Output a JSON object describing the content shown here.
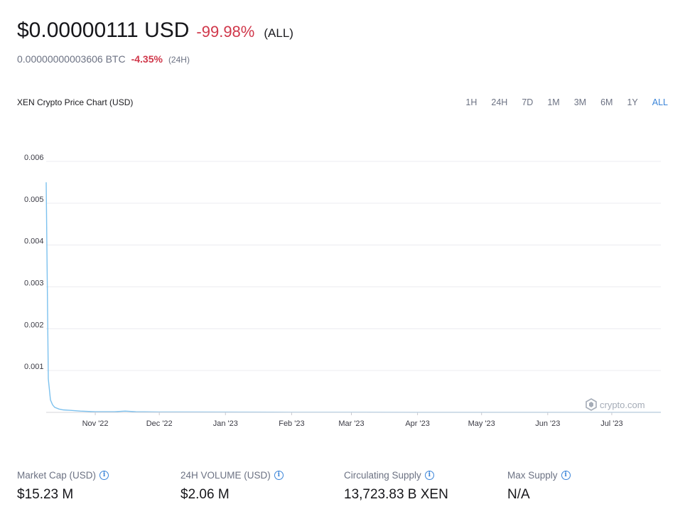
{
  "header": {
    "price": "$0.00000111 USD",
    "change": "-99.98%",
    "period": "(ALL)",
    "btc_price": "0.00000000003606 BTC",
    "btc_change": "-4.35%",
    "btc_period": "(24H)"
  },
  "chart_title": "XEN Crypto Price Chart (USD)",
  "range_tabs": [
    "1H",
    "24H",
    "7D",
    "1M",
    "3M",
    "6M",
    "1Y",
    "ALL"
  ],
  "active_range": "ALL",
  "watermark": "crypto.com",
  "colors": {
    "line": "#7cc1ee",
    "negative": "#d0374a",
    "accent": "#3a84d8"
  },
  "chart_data": {
    "type": "line",
    "title": "",
    "xlabel": "",
    "ylabel": "",
    "ylim": [
      0,
      0.006
    ],
    "yticks": [
      "0.006",
      "0.005",
      "0.004",
      "0.003",
      "0.002",
      "0.001"
    ],
    "x_tick_labels": [
      "Nov '22",
      "Dec '22",
      "Jan '23",
      "Feb '23",
      "Mar '23",
      "Apr '23",
      "May '23",
      "Jun '23",
      "Jul '23"
    ],
    "xlim": [
      "2022-10-09",
      "2023-07-24"
    ],
    "x_ticks": [
      "2022-11-01",
      "2022-12-01",
      "2023-01-01",
      "2023-02-01",
      "2023-03-01",
      "2023-04-01",
      "2023-05-01",
      "2023-06-01",
      "2023-07-01"
    ],
    "grid": true,
    "series": [
      {
        "x": [
          "2022-10-09",
          "2022-10-10",
          "2022-10-11",
          "2022-10-12",
          "2022-10-13",
          "2022-10-15",
          "2022-10-17",
          "2022-10-20",
          "2022-10-25",
          "2022-11-01",
          "2022-11-10",
          "2022-11-15",
          "2022-11-20",
          "2022-12-01",
          "2023-01-01",
          "2023-02-01",
          "2023-03-01",
          "2023-04-01",
          "2023-05-01",
          "2023-06-01",
          "2023-07-01",
          "2023-07-24"
        ],
        "y": [
          0.0055,
          0.0008,
          0.0003,
          0.00018,
          0.00012,
          8e-05,
          6e-05,
          5e-05,
          3e-05,
          1.5e-05,
          1.5e-05,
          3e-05,
          1.5e-05,
          1e-05,
          6e-06,
          4e-06,
          3e-06,
          2e-06,
          1.8e-06,
          1.5e-06,
          1.2e-06,
          1.11e-06
        ]
      }
    ]
  },
  "stats": [
    {
      "label": "Market Cap (USD)",
      "value": "$15.23 M"
    },
    {
      "label": "24H VOLUME (USD)",
      "value": "$2.06 M"
    },
    {
      "label": "Circulating Supply",
      "value": "13,723.83 B XEN"
    },
    {
      "label": "Max Supply",
      "value": "N/A"
    }
  ]
}
